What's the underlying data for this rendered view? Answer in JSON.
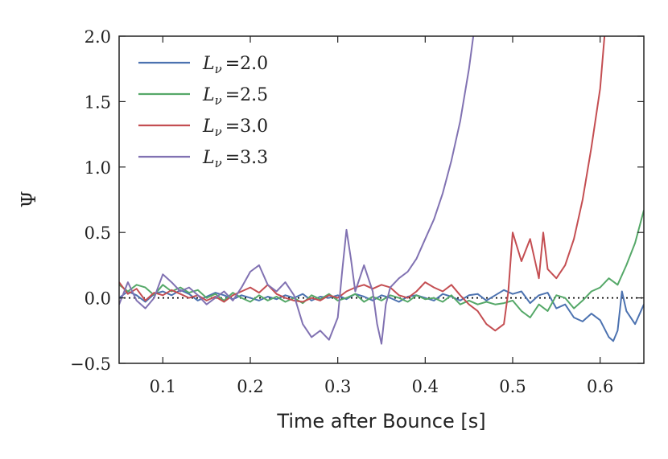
{
  "chart_data": {
    "type": "line",
    "title": "",
    "xlabel": "Time after Bounce [s]",
    "ylabel": "Ψ",
    "xlim": [
      0.05,
      0.65
    ],
    "ylim": [
      -0.5,
      2.0
    ],
    "xticks": [
      0.1,
      0.2,
      0.3,
      0.4,
      0.5,
      0.6
    ],
    "xtick_labels": [
      "0.1",
      "0.2",
      "0.3",
      "0.4",
      "0.5",
      "0.6"
    ],
    "yticks": [
      -0.5,
      0.0,
      0.5,
      1.0,
      1.5,
      2.0
    ],
    "ytick_labels": [
      "−0.5",
      "0.0",
      "0.5",
      "1.0",
      "1.5",
      "2.0"
    ],
    "reference_line": {
      "y": 0.0,
      "style": "dotted",
      "color": "#000000"
    },
    "legend_position": "top-left",
    "series": [
      {
        "name": "L_ν =2.0",
        "legend_label": "L",
        "legend_sub": "ν",
        "legend_value": "=2.0",
        "color": "#4c72b0",
        "x": [
          0.05,
          0.06,
          0.07,
          0.08,
          0.09,
          0.1,
          0.11,
          0.12,
          0.13,
          0.14,
          0.15,
          0.16,
          0.17,
          0.18,
          0.19,
          0.2,
          0.21,
          0.22,
          0.23,
          0.24,
          0.25,
          0.26,
          0.27,
          0.28,
          0.29,
          0.3,
          0.31,
          0.32,
          0.33,
          0.34,
          0.35,
          0.36,
          0.37,
          0.38,
          0.39,
          0.4,
          0.41,
          0.42,
          0.43,
          0.44,
          0.45,
          0.46,
          0.47,
          0.48,
          0.49,
          0.5,
          0.51,
          0.52,
          0.53,
          0.54,
          0.55,
          0.56,
          0.57,
          0.58,
          0.59,
          0.6,
          0.61,
          0.615,
          0.62,
          0.625,
          0.63,
          0.64,
          0.65
        ],
        "y": [
          0.0,
          0.05,
          0.02,
          -0.03,
          0.03,
          0.05,
          0.02,
          0.06,
          0.03,
          -0.02,
          0.01,
          0.04,
          0.02,
          -0.01,
          0.02,
          0.0,
          -0.02,
          0.01,
          -0.01,
          0.02,
          0.0,
          0.03,
          -0.02,
          0.01,
          0.0,
          0.02,
          -0.01,
          0.03,
          0.01,
          -0.02,
          0.02,
          0.0,
          -0.03,
          0.01,
          0.02,
          0.0,
          -0.02,
          0.03,
          0.01,
          -0.02,
          0.02,
          0.03,
          -0.02,
          0.02,
          0.06,
          0.03,
          0.05,
          -0.04,
          0.02,
          0.04,
          -0.08,
          -0.05,
          -0.15,
          -0.18,
          -0.12,
          -0.17,
          -0.3,
          -0.33,
          -0.25,
          0.05,
          -0.1,
          -0.2,
          -0.05
        ]
      },
      {
        "name": "L_ν =2.5",
        "legend_label": "L",
        "legend_sub": "ν",
        "legend_value": "=2.5",
        "color": "#55a868",
        "x": [
          0.05,
          0.06,
          0.07,
          0.08,
          0.09,
          0.1,
          0.11,
          0.12,
          0.13,
          0.14,
          0.15,
          0.16,
          0.17,
          0.18,
          0.19,
          0.2,
          0.21,
          0.22,
          0.23,
          0.24,
          0.25,
          0.26,
          0.27,
          0.28,
          0.29,
          0.3,
          0.31,
          0.32,
          0.33,
          0.34,
          0.35,
          0.36,
          0.37,
          0.38,
          0.39,
          0.4,
          0.41,
          0.42,
          0.43,
          0.44,
          0.45,
          0.46,
          0.47,
          0.48,
          0.49,
          0.5,
          0.51,
          0.52,
          0.53,
          0.54,
          0.55,
          0.56,
          0.57,
          0.58,
          0.59,
          0.6,
          0.61,
          0.62,
          0.63,
          0.64,
          0.65
        ],
        "y": [
          0.1,
          0.05,
          0.1,
          0.08,
          0.02,
          0.1,
          0.05,
          0.08,
          0.04,
          0.06,
          0.0,
          0.03,
          -0.02,
          0.04,
          0.0,
          -0.03,
          0.02,
          -0.02,
          0.01,
          -0.03,
          0.0,
          -0.04,
          0.02,
          -0.01,
          0.03,
          -0.02,
          0.0,
          0.03,
          -0.03,
          0.01,
          -0.02,
          0.02,
          0.0,
          -0.03,
          0.02,
          -0.01,
          0.0,
          -0.03,
          0.02,
          -0.05,
          -0.02,
          -0.05,
          -0.03,
          -0.05,
          -0.04,
          -0.02,
          -0.1,
          -0.15,
          -0.05,
          -0.1,
          0.02,
          0.0,
          -0.08,
          -0.02,
          0.05,
          0.08,
          0.15,
          0.1,
          0.25,
          0.42,
          0.67
        ]
      },
      {
        "name": "L_ν =3.0",
        "legend_label": "L",
        "legend_sub": "ν",
        "legend_value": "=3.0",
        "color": "#c44e52",
        "x": [
          0.05,
          0.06,
          0.07,
          0.08,
          0.09,
          0.1,
          0.11,
          0.12,
          0.13,
          0.14,
          0.15,
          0.16,
          0.17,
          0.18,
          0.19,
          0.2,
          0.21,
          0.22,
          0.23,
          0.24,
          0.25,
          0.26,
          0.27,
          0.28,
          0.29,
          0.3,
          0.31,
          0.32,
          0.33,
          0.34,
          0.35,
          0.36,
          0.37,
          0.38,
          0.39,
          0.4,
          0.41,
          0.42,
          0.43,
          0.44,
          0.45,
          0.46,
          0.47,
          0.48,
          0.49,
          0.495,
          0.5,
          0.51,
          0.52,
          0.53,
          0.535,
          0.54,
          0.55,
          0.56,
          0.57,
          0.58,
          0.59,
          0.6,
          0.605
        ],
        "y": [
          0.12,
          0.03,
          0.07,
          -0.02,
          0.04,
          0.02,
          0.06,
          0.03,
          0.0,
          0.02,
          -0.02,
          0.01,
          -0.03,
          0.02,
          0.05,
          0.08,
          0.04,
          0.1,
          0.03,
          0.0,
          -0.02,
          -0.03,
          0.0,
          -0.02,
          0.02,
          0.0,
          0.05,
          0.08,
          0.1,
          0.07,
          0.1,
          0.08,
          0.02,
          0.0,
          0.05,
          0.12,
          0.08,
          0.05,
          0.1,
          0.02,
          -0.05,
          -0.1,
          -0.2,
          -0.25,
          -0.2,
          0.05,
          0.5,
          0.28,
          0.45,
          0.15,
          0.5,
          0.22,
          0.15,
          0.25,
          0.45,
          0.75,
          1.15,
          1.6,
          2.0
        ]
      },
      {
        "name": "L_ν =3.3",
        "legend_label": "L",
        "legend_sub": "ν",
        "legend_value": "=3.3",
        "color": "#8172b2",
        "x": [
          0.05,
          0.06,
          0.07,
          0.08,
          0.09,
          0.1,
          0.11,
          0.12,
          0.13,
          0.14,
          0.15,
          0.16,
          0.17,
          0.18,
          0.19,
          0.2,
          0.21,
          0.22,
          0.23,
          0.24,
          0.25,
          0.26,
          0.27,
          0.28,
          0.29,
          0.3,
          0.305,
          0.31,
          0.315,
          0.32,
          0.33,
          0.34,
          0.345,
          0.35,
          0.355,
          0.36,
          0.37,
          0.38,
          0.39,
          0.4,
          0.41,
          0.42,
          0.43,
          0.44,
          0.45,
          0.455
        ],
        "y": [
          -0.05,
          0.12,
          -0.02,
          -0.08,
          0.0,
          0.18,
          0.12,
          0.05,
          0.08,
          0.02,
          -0.05,
          0.0,
          0.05,
          -0.02,
          0.08,
          0.2,
          0.25,
          0.1,
          0.05,
          0.12,
          0.02,
          -0.2,
          -0.3,
          -0.25,
          -0.32,
          -0.15,
          0.2,
          0.52,
          0.3,
          0.05,
          0.25,
          0.05,
          -0.2,
          -0.35,
          -0.05,
          0.08,
          0.15,
          0.2,
          0.3,
          0.45,
          0.6,
          0.8,
          1.05,
          1.35,
          1.75,
          2.0
        ]
      }
    ]
  }
}
